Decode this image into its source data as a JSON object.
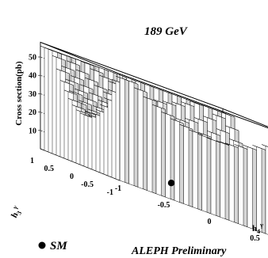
{
  "chart_data": {
    "type": "lego-3d",
    "annotation_energy": "189 GeV",
    "footer": "ALEPH Preliminary",
    "legend": {
      "marker": "filled-circle",
      "label": "SM"
    },
    "zlabel": "Cross section(pb)",
    "zticks": [
      "10",
      "20",
      "30",
      "40",
      "50"
    ],
    "zlim": [
      0,
      58
    ],
    "ylabel": {
      "main": "h",
      "subscript": "3",
      "superscript": "γ"
    },
    "yticks": [
      "1",
      "0.5",
      "0",
      "-0.5",
      "-1"
    ],
    "xlabel": {
      "main": "h",
      "subscript": "4",
      "superscript": "γ"
    },
    "xticks": [
      "-1",
      "-0.5",
      "0",
      "0.5",
      "1"
    ],
    "xlim": [
      -1,
      1
    ],
    "ylim": [
      -1,
      1
    ],
    "grid": true,
    "sm_point": {
      "h3": 0,
      "h4": 0
    },
    "model": "cross section minimum near h3=0,h4=0 rising quadratically toward edges",
    "surface_description": "cross section approx 8 + 45*(h3+0.1)^2 + 20*(h4-0.05)^2 pb, shown as lego bars on 20x20 grid"
  }
}
